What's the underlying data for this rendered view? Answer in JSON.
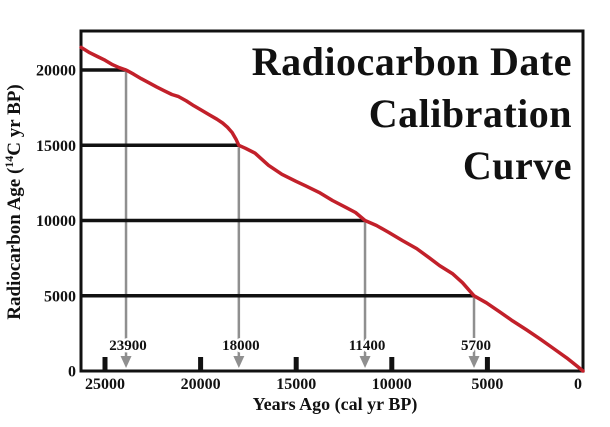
{
  "figure": {
    "background": "#ffffff"
  },
  "colors": {
    "curve": "#c2202a",
    "axis": "#111111",
    "arrow": "#8f8f8f",
    "text": "#111111"
  },
  "chart_data": {
    "type": "line",
    "title": "Radiocarbon Date Calibration Curve",
    "title_lines": [
      "Radiocarbon Date",
      "Calibration",
      "Curve"
    ],
    "xlabel": "Years Ago (cal yr BP)",
    "ylabel": "Radiocarbon Age (14C yr BP)",
    "ylabel_parts": [
      "Radiocarbon Age (",
      "14",
      "C yr BP)"
    ],
    "x_axis": {
      "label": "Years Ago (cal yr BP)",
      "reversed": true,
      "min": 0,
      "max": 26250,
      "ticks": [
        25000,
        20000,
        15000,
        10000,
        5000,
        0
      ]
    },
    "y_axis": {
      "label": "Radiocarbon Age (14C yr BP)",
      "min": 0,
      "max": 22600,
      "ticks": [
        0,
        5000,
        10000,
        15000,
        20000
      ]
    },
    "grid": false,
    "legend": false,
    "series": [
      {
        "name": "calibration-curve",
        "color": "#c2202a",
        "points": [
          [
            26250,
            21500
          ],
          [
            25800,
            21150
          ],
          [
            25400,
            20900
          ],
          [
            25000,
            20650
          ],
          [
            24600,
            20350
          ],
          [
            24250,
            20150
          ],
          [
            23900,
            20000
          ],
          [
            23500,
            19720
          ],
          [
            23100,
            19420
          ],
          [
            22700,
            19150
          ],
          [
            22300,
            18880
          ],
          [
            21900,
            18620
          ],
          [
            21500,
            18370
          ],
          [
            21150,
            18230
          ],
          [
            20750,
            17950
          ],
          [
            20350,
            17620
          ],
          [
            19950,
            17320
          ],
          [
            19550,
            17020
          ],
          [
            19150,
            16730
          ],
          [
            18850,
            16480
          ],
          [
            18600,
            16200
          ],
          [
            18350,
            15850
          ],
          [
            18150,
            15400
          ],
          [
            18000,
            15000
          ],
          [
            17650,
            14800
          ],
          [
            17150,
            14470
          ],
          [
            16450,
            13670
          ],
          [
            15750,
            13070
          ],
          [
            15000,
            12600
          ],
          [
            14500,
            12300
          ],
          [
            13800,
            11870
          ],
          [
            13100,
            11330
          ],
          [
            12400,
            10870
          ],
          [
            11900,
            10530
          ],
          [
            11400,
            10000
          ],
          [
            10800,
            9670
          ],
          [
            10150,
            9200
          ],
          [
            9450,
            8670
          ],
          [
            8700,
            8130
          ],
          [
            8050,
            7530
          ],
          [
            7500,
            7000
          ],
          [
            6830,
            6470
          ],
          [
            6300,
            5870
          ],
          [
            5700,
            5000
          ],
          [
            5050,
            4530
          ],
          [
            4350,
            3930
          ],
          [
            3680,
            3330
          ],
          [
            2950,
            2730
          ],
          [
            2250,
            2130
          ],
          [
            1580,
            1530
          ],
          [
            850,
            870
          ],
          [
            260,
            270
          ],
          [
            0,
            0
          ]
        ]
      }
    ],
    "callouts": [
      {
        "radiocarbon_age": 20000,
        "calendar_age": 23900,
        "label": "23900"
      },
      {
        "radiocarbon_age": 15000,
        "calendar_age": 18000,
        "label": "18000"
      },
      {
        "radiocarbon_age": 10000,
        "calendar_age": 11400,
        "label": "11400"
      },
      {
        "radiocarbon_age": 5000,
        "calendar_age": 5700,
        "label": "5700"
      }
    ]
  }
}
